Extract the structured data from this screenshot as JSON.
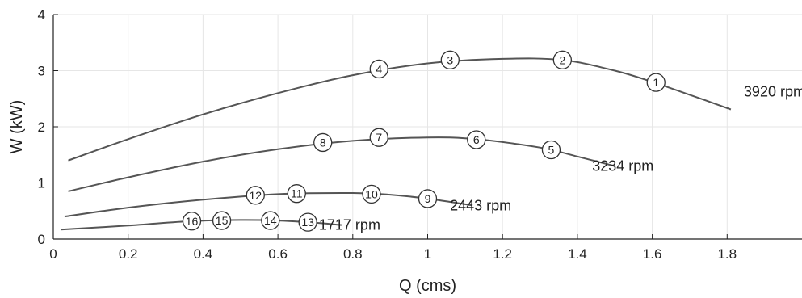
{
  "chart_data": {
    "type": "line",
    "title": "",
    "xlabel": "Q (cms)",
    "ylabel": "W (kW)",
    "xlim": [
      0,
      2.0
    ],
    "ylim": [
      0,
      4
    ],
    "xticks": [
      0,
      0.2,
      0.4,
      0.6,
      0.8,
      1,
      1.2,
      1.4,
      1.6,
      1.8
    ],
    "xtick_labels": [
      "0",
      "0.2",
      "0.4",
      "0.6",
      "0.8",
      "1",
      "1.2",
      "1.4",
      "1.6",
      "1.8"
    ],
    "yticks": [
      0,
      1,
      2,
      3,
      4
    ],
    "ytick_labels": [
      "0",
      "1",
      "2",
      "3",
      "4"
    ],
    "grid": true,
    "line_color": "#555555",
    "series": [
      {
        "name": "3920 rpm",
        "curve": [
          [
            0.04,
            1.4
          ],
          [
            0.2,
            1.78
          ],
          [
            0.4,
            2.22
          ],
          [
            0.6,
            2.6
          ],
          [
            0.8,
            2.92
          ],
          [
            1.0,
            3.13
          ],
          [
            1.2,
            3.21
          ],
          [
            1.36,
            3.19
          ],
          [
            1.5,
            3.0
          ],
          [
            1.6,
            2.8
          ],
          [
            1.7,
            2.57
          ],
          [
            1.81,
            2.31
          ]
        ],
        "points": [
          {
            "label": "1",
            "x": 1.61,
            "y": 2.79
          },
          {
            "label": "2",
            "x": 1.36,
            "y": 3.19
          },
          {
            "label": "3",
            "x": 1.06,
            "y": 3.19
          },
          {
            "label": "4",
            "x": 0.87,
            "y": 3.03
          }
        ]
      },
      {
        "name": "3234 rpm",
        "curve": [
          [
            0.04,
            0.85
          ],
          [
            0.2,
            1.1
          ],
          [
            0.4,
            1.38
          ],
          [
            0.6,
            1.6
          ],
          [
            0.8,
            1.75
          ],
          [
            1.0,
            1.81
          ],
          [
            1.13,
            1.78
          ],
          [
            1.3,
            1.63
          ],
          [
            1.4,
            1.47
          ],
          [
            1.5,
            1.3
          ]
        ],
        "points": [
          {
            "label": "5",
            "x": 1.33,
            "y": 1.59
          },
          {
            "label": "6",
            "x": 1.13,
            "y": 1.77
          },
          {
            "label": "7",
            "x": 0.87,
            "y": 1.81
          },
          {
            "label": "8",
            "x": 0.72,
            "y": 1.72
          }
        ]
      },
      {
        "name": "2443 rpm",
        "curve": [
          [
            0.03,
            0.4
          ],
          [
            0.2,
            0.56
          ],
          [
            0.4,
            0.7
          ],
          [
            0.6,
            0.8
          ],
          [
            0.8,
            0.82
          ],
          [
            0.9,
            0.79
          ],
          [
            1.0,
            0.72
          ],
          [
            1.12,
            0.6
          ]
        ],
        "points": [
          {
            "label": "9",
            "x": 1.0,
            "y": 0.72
          },
          {
            "label": "10",
            "x": 0.85,
            "y": 0.8
          },
          {
            "label": "11",
            "x": 0.65,
            "y": 0.81
          },
          {
            "label": "12",
            "x": 0.54,
            "y": 0.78
          }
        ]
      },
      {
        "name": "1717 rpm",
        "curve": [
          [
            0.02,
            0.17
          ],
          [
            0.2,
            0.24
          ],
          [
            0.37,
            0.32
          ],
          [
            0.5,
            0.34
          ],
          [
            0.6,
            0.33
          ],
          [
            0.7,
            0.29
          ],
          [
            0.77,
            0.25
          ]
        ],
        "points": [
          {
            "label": "13",
            "x": 0.68,
            "y": 0.3
          },
          {
            "label": "14",
            "x": 0.58,
            "y": 0.33
          },
          {
            "label": "15",
            "x": 0.45,
            "y": 0.33
          },
          {
            "label": "16",
            "x": 0.37,
            "y": 0.32
          }
        ]
      }
    ]
  }
}
